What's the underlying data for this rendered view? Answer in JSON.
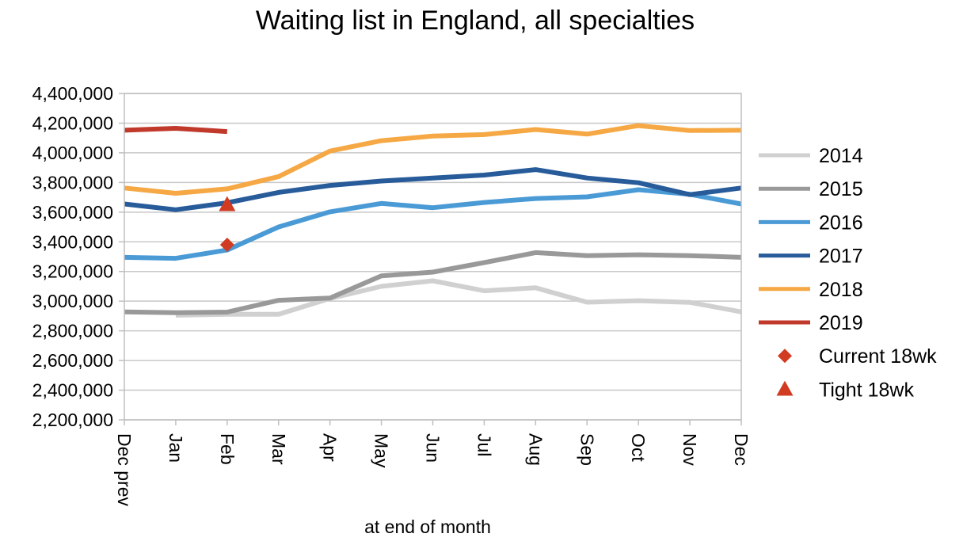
{
  "chart_data": {
    "type": "line",
    "title": "Waiting list in England, all specialties",
    "xlabel": "at end of month",
    "ylabel": "",
    "categories": [
      "Dec prev",
      "Jan",
      "Feb",
      "Mar",
      "Apr",
      "May",
      "Jun",
      "Jul",
      "Aug",
      "Sep",
      "Oct",
      "Nov",
      "Dec"
    ],
    "ylim": [
      2200000,
      4400000
    ],
    "yticks": [
      2200000,
      2400000,
      2600000,
      2800000,
      3000000,
      3200000,
      3400000,
      3600000,
      3800000,
      4000000,
      4200000,
      4400000
    ],
    "ytick_labels": [
      "2,200,000",
      "2,400,000",
      "2,600,000",
      "2,800,000",
      "3,000,000",
      "3,200,000",
      "3,400,000",
      "3,600,000",
      "3,800,000",
      "4,000,000",
      "4,200,000",
      "4,400,000"
    ],
    "grid": "horizontal",
    "legend_position": "right",
    "series": [
      {
        "name": "2014",
        "color": "#d0d0d0",
        "values": [
          null,
          2905000,
          2912000,
          2912000,
          3018000,
          3100000,
          3137000,
          3070000,
          3090000,
          2993000,
          3003000,
          2992000,
          2928000
        ]
      },
      {
        "name": "2015",
        "color": "#999999",
        "values": [
          2928000,
          2922000,
          2926000,
          3006000,
          3021000,
          3170000,
          3196000,
          3260000,
          3327000,
          3307000,
          3313000,
          3307000,
          3295000
        ]
      },
      {
        "name": "2016",
        "color": "#4a9ad6",
        "values": [
          3295000,
          3289000,
          3345000,
          3500000,
          3602000,
          3659000,
          3630000,
          3665000,
          3692000,
          3703000,
          3751000,
          3720000,
          3655000
        ]
      },
      {
        "name": "2017",
        "color": "#275b99",
        "values": [
          3655000,
          3616000,
          3663000,
          3733000,
          3780000,
          3810000,
          3830000,
          3850000,
          3887000,
          3830000,
          3798000,
          3718000,
          3763000
        ]
      },
      {
        "name": "2018",
        "color": "#f5a844",
        "values": [
          3763000,
          3727000,
          3757000,
          3840000,
          4012000,
          4082000,
          4113000,
          4123000,
          4157000,
          4126000,
          4183000,
          4150000,
          4152000
        ]
      },
      {
        "name": "2019",
        "color": "#c0392b",
        "values": [
          4152000,
          4165000,
          4143000,
          null,
          null,
          null,
          null,
          null,
          null,
          null,
          null,
          null,
          null
        ]
      }
    ],
    "markers": [
      {
        "name": "Current 18wk",
        "shape": "diamond",
        "color": "#d13b22",
        "category": "Feb",
        "value": 3380000
      },
      {
        "name": "Tight 18wk",
        "shape": "triangle",
        "color": "#d13b22",
        "category": "Feb",
        "value": 3650000
      }
    ]
  }
}
